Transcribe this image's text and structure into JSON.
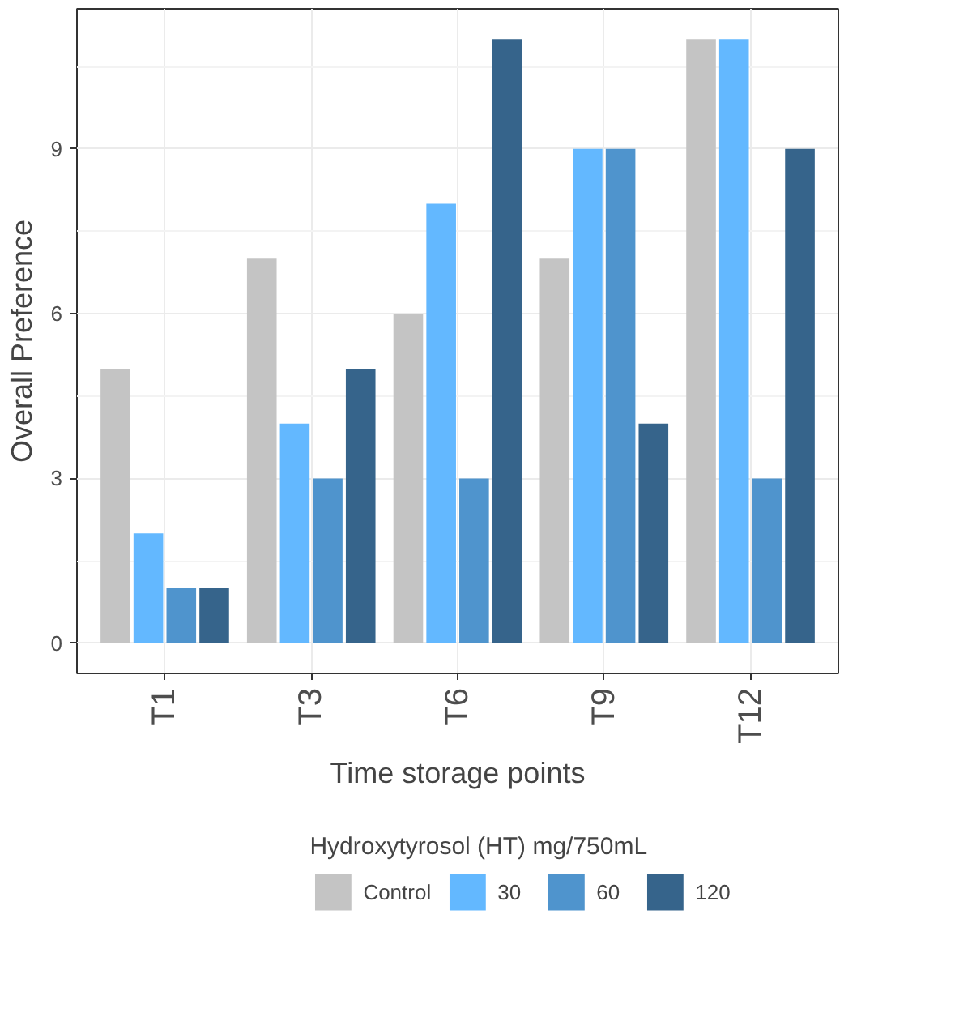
{
  "chart_data": {
    "type": "bar",
    "xlabel": "Time storage points",
    "ylabel": "Overall Preference",
    "legend_title": "Hydroxytyrosol (HT) mg/750mL",
    "categories": [
      "T1",
      "T3",
      "T6",
      "T9",
      "T12"
    ],
    "series": [
      {
        "name": "Control",
        "color": "#c4c4c4",
        "values": [
          5,
          7,
          6,
          7,
          11
        ]
      },
      {
        "name": "30",
        "color": "#63b8ff",
        "values": [
          2,
          4,
          8,
          9,
          11
        ]
      },
      {
        "name": "60",
        "color": "#4f94cd",
        "values": [
          1,
          3,
          3,
          9,
          3
        ]
      },
      {
        "name": "120",
        "color": "#36648b",
        "values": [
          1,
          5,
          11,
          4,
          9
        ]
      }
    ],
    "ylim": [
      -0.55,
      11.55
    ],
    "yticks": [
      0,
      3,
      6,
      9
    ],
    "grid": true,
    "legend": "bottom"
  }
}
